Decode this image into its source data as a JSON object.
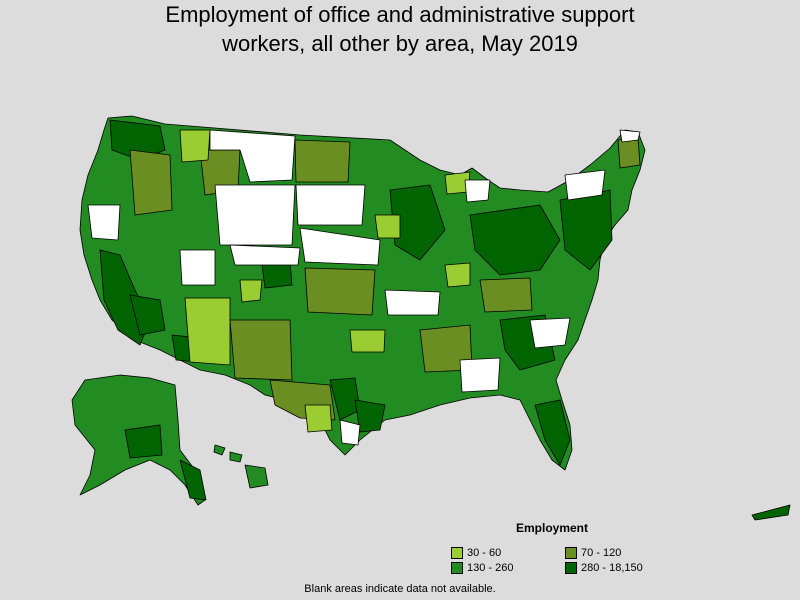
{
  "title": {
    "line1": "Employment of office and administrative support",
    "line2": "workers, all other by area, May 2019"
  },
  "legend": {
    "title": "Employment",
    "items": [
      {
        "label": "30 - 60",
        "color": "#9acd32"
      },
      {
        "label": "70 - 120",
        "color": "#6b8e23"
      },
      {
        "label": "130 - 260",
        "color": "#228b22"
      },
      {
        "label": "280 - 18,150",
        "color": "#006400"
      }
    ]
  },
  "footnote": "Blank areas indicate data not available.",
  "colors": {
    "background": "#dcdcdc",
    "no_data": "#ffffff",
    "border": "#000000"
  }
}
